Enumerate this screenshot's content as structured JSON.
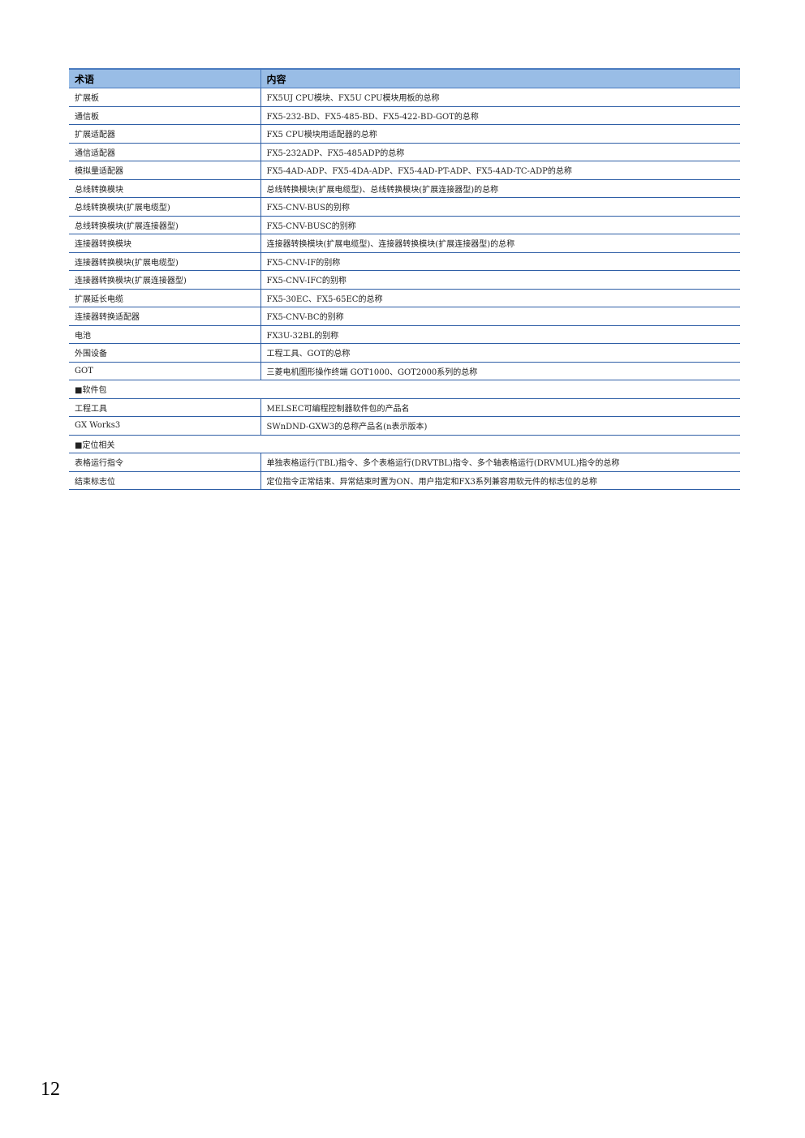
{
  "table": {
    "headers": [
      "术语",
      "内容"
    ],
    "rows": [
      {
        "term": "扩展板",
        "content": "FX5UJ CPU模块、FX5U CPU模块用板的总称"
      },
      {
        "term": "通信板",
        "content": "FX5-232-BD、FX5-485-BD、FX5-422-BD-GOT的总称"
      },
      {
        "term": "扩展适配器",
        "content": "FX5 CPU模块用适配器的总称"
      },
      {
        "term": "通信适配器",
        "content": "FX5-232ADP、FX5-485ADP的总称"
      },
      {
        "term": "模拟量适配器",
        "content": "FX5-4AD-ADP、FX5-4DA-ADP、FX5-4AD-PT-ADP、FX5-4AD-TC-ADP的总称"
      },
      {
        "term": "总线转换模块",
        "content": "总线转换模块(扩展电缆型)、总线转换模块(扩展连接器型)的总称"
      },
      {
        "term": "总线转换模块(扩展电缆型)",
        "content": "FX5-CNV-BUS的别称"
      },
      {
        "term": "总线转换模块(扩展连接器型)",
        "content": "FX5-CNV-BUSC的别称"
      },
      {
        "term": "连接器转换模块",
        "content": "连接器转换模块(扩展电缆型)、连接器转换模块(扩展连接器型)的总称"
      },
      {
        "term": "连接器转换模块(扩展电缆型)",
        "content": "FX5-CNV-IF的别称"
      },
      {
        "term": "连接器转换模块(扩展连接器型)",
        "content": "FX5-CNV-IFC的别称"
      },
      {
        "term": "扩展延长电缆",
        "content": "FX5-30EC、FX5-65EC的总称"
      },
      {
        "term": "连接器转换适配器",
        "content": "FX5-CNV-BC的别称"
      },
      {
        "term": "电池",
        "content": "FX3U-32BL的别称"
      },
      {
        "term": "外围设备",
        "content": "工程工具、GOT的总称"
      },
      {
        "term": "GOT",
        "content": "三菱电机图形操作终端 GOT1000、GOT2000系列的总称"
      },
      {
        "section": "■软件包"
      },
      {
        "term": "工程工具",
        "content": "MELSEC可编程控制器软件包的产品名"
      },
      {
        "term": "GX Works3",
        "content": "SWnDND-GXW3的总称产品名(n表示版本)"
      },
      {
        "section": "■定位相关"
      },
      {
        "term": "表格运行指令",
        "content": "单独表格运行(TBL)指令、多个表格运行(DRVTBL)指令、多个轴表格运行(DRVMUL)指令的总称"
      },
      {
        "term": "结束标志位",
        "content": "定位指令正常结束、异常结束时置为ON、用户指定和FX3系列兼容用软元件的标志位的总称"
      }
    ]
  },
  "page_number": "12"
}
